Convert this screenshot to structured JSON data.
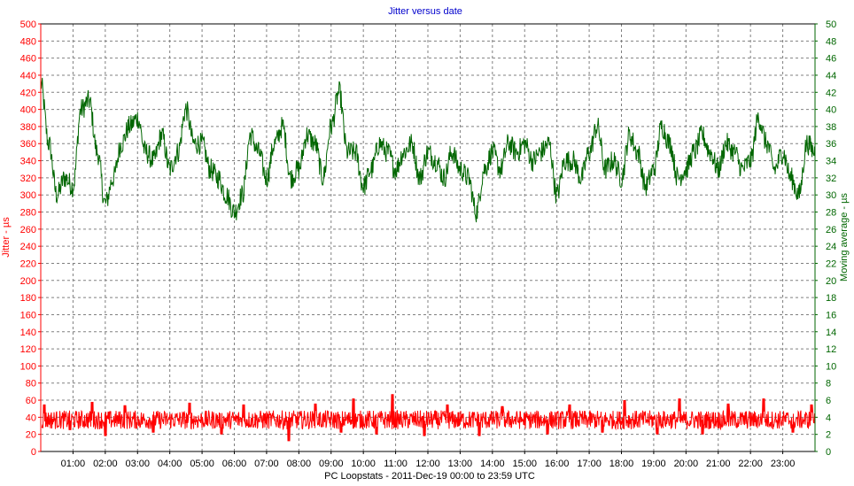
{
  "chart_data": {
    "type": "line",
    "title": "Jitter versus date",
    "xlabel": "PC Loopstats  -  2011-Dec-19 00:00  to  23:59 UTC",
    "ylabel_left": "Jitter - µs",
    "ylabel_right": "Moving average - µs",
    "x_ticks": [
      "01:00",
      "02:00",
      "03:00",
      "04:00",
      "05:00",
      "06:00",
      "07:00",
      "08:00",
      "09:00",
      "10:00",
      "11:00",
      "12:00",
      "13:00",
      "14:00",
      "15:00",
      "16:00",
      "17:00",
      "18:00",
      "19:00",
      "20:00",
      "21:00",
      "22:00",
      "23:00"
    ],
    "xlim_hours": [
      0,
      24
    ],
    "ylim_left": [
      0,
      500
    ],
    "ylim_right": [
      0,
      50
    ],
    "left_ticks": [
      "0",
      "20",
      "40",
      "60",
      "80",
      "100",
      "120",
      "140",
      "160",
      "180",
      "200",
      "220",
      "240",
      "260",
      "280",
      "300",
      "320",
      "340",
      "360",
      "380",
      "400",
      "420",
      "440",
      "460",
      "480",
      "500"
    ],
    "right_ticks": [
      "0",
      "2",
      "4",
      "6",
      "8",
      "10",
      "12",
      "14",
      "16",
      "18",
      "20",
      "22",
      "24",
      "26",
      "28",
      "30",
      "32",
      "34",
      "36",
      "38",
      "40",
      "42",
      "44",
      "46",
      "48",
      "50"
    ],
    "grid": true,
    "colors": {
      "title": "#0000cc",
      "left_axis": "#ff0000",
      "right_axis": "#006600",
      "axis_text": "#000000",
      "grid": "#808080"
    },
    "series": [
      {
        "axis": "right",
        "color": "#006600",
        "x_hours": [
          0,
          0.25,
          0.5,
          0.75,
          1,
          1.25,
          1.5,
          1.75,
          2,
          2.25,
          2.5,
          2.75,
          3,
          3.25,
          3.5,
          3.75,
          4,
          4.25,
          4.5,
          4.75,
          5,
          5.25,
          5.5,
          5.75,
          6,
          6.25,
          6.5,
          6.75,
          7,
          7.25,
          7.5,
          7.75,
          8,
          8.25,
          8.5,
          8.75,
          9,
          9.25,
          9.5,
          9.75,
          10,
          10.25,
          10.5,
          10.75,
          11,
          11.25,
          11.5,
          11.75,
          12,
          12.25,
          12.5,
          12.75,
          13,
          13.25,
          13.5,
          13.75,
          14,
          14.25,
          14.5,
          14.75,
          15,
          15.25,
          15.5,
          15.75,
          16,
          16.25,
          16.5,
          16.75,
          17,
          17.25,
          17.5,
          17.75,
          18,
          18.25,
          18.5,
          18.75,
          19,
          19.25,
          19.5,
          19.75,
          20,
          20.25,
          20.5,
          20.75,
          21,
          21.25,
          21.5,
          21.75,
          22,
          22.25,
          22.5,
          22.75,
          23,
          23.25,
          23.5,
          23.75,
          24
        ],
        "values": [
          43,
          36,
          30,
          32,
          31,
          40,
          41,
          35,
          29,
          32,
          36,
          38,
          39,
          35,
          34,
          37,
          33,
          35,
          40,
          36,
          36,
          33,
          32,
          30,
          28,
          30,
          37,
          35,
          32,
          36,
          38,
          32,
          33,
          37,
          36,
          32,
          38,
          42,
          35,
          35,
          31,
          33,
          36,
          35,
          33,
          35,
          36,
          32,
          35,
          34,
          32,
          35,
          33,
          32,
          28,
          33,
          35,
          33,
          36,
          35,
          36,
          34,
          35,
          36,
          30,
          34,
          34,
          32,
          35,
          38,
          33,
          34,
          32,
          37,
          35,
          31,
          33,
          38,
          36,
          32,
          33,
          35,
          37,
          35,
          33,
          36,
          35,
          33,
          34,
          39,
          36,
          33,
          35,
          32,
          30,
          36,
          35
        ]
      },
      {
        "axis": "left",
        "color": "#ff0000",
        "baseline": 37,
        "amplitude": 11,
        "spikes": [
          [
            0.1,
            55
          ],
          [
            0.9,
            25
          ],
          [
            1.6,
            58
          ],
          [
            2.0,
            18
          ],
          [
            2.6,
            54
          ],
          [
            3.5,
            22
          ],
          [
            4.6,
            57
          ],
          [
            5.6,
            20
          ],
          [
            6.3,
            55
          ],
          [
            7.7,
            12
          ],
          [
            8.5,
            56
          ],
          [
            9.3,
            22
          ],
          [
            9.7,
            62
          ],
          [
            10.4,
            20
          ],
          [
            10.9,
            67
          ],
          [
            11.9,
            18
          ],
          [
            12.6,
            55
          ],
          [
            13.6,
            18
          ],
          [
            14.3,
            53
          ],
          [
            15.7,
            20
          ],
          [
            16.4,
            55
          ],
          [
            17.4,
            22
          ],
          [
            18.1,
            60
          ],
          [
            19.1,
            20
          ],
          [
            19.8,
            62
          ],
          [
            20.5,
            20
          ],
          [
            21.3,
            56
          ],
          [
            22.4,
            62
          ],
          [
            23.3,
            22
          ],
          [
            23.9,
            55
          ]
        ]
      }
    ]
  }
}
